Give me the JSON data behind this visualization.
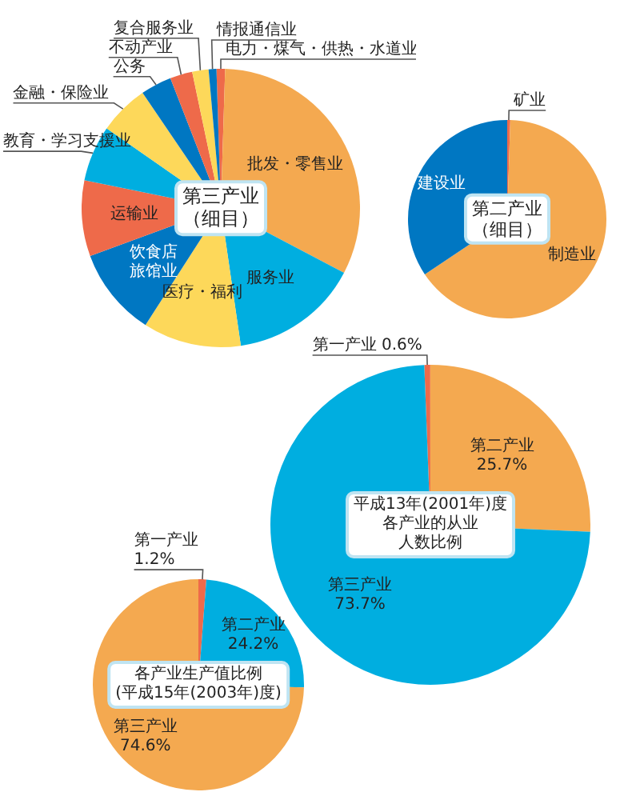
{
  "chart_data": [
    {
      "type": "pie",
      "title": "第三产业",
      "subtitle": "（细目）",
      "categories": [
        "电力・煤气・供热・水道业",
        "批发・零售业",
        "服务业",
        "医疗・福利",
        "饮食店旅馆业",
        "运输业",
        "教育・学习支援业",
        "金融・保险业",
        "公务",
        "不动产业",
        "复合服务业",
        "情报通信业"
      ],
      "values": [
        1.0,
        32.2,
        15.0,
        11.4,
        10.3,
        8.8,
        6.5,
        5.8,
        3.6,
        2.6,
        1.9,
        0.9
      ],
      "colors": [
        "#ee6a4a",
        "#f4a950",
        "#00aee0",
        "#fdd85a",
        "#0077c2",
        "#ee6a4a",
        "#00aee0",
        "#fdd85a",
        "#0077c2",
        "#ee6a4a",
        "#fdd85a",
        "#0077c2"
      ]
    },
    {
      "type": "pie",
      "title": "第二产业",
      "subtitle": "（细目）",
      "categories": [
        "矿业",
        "制造业",
        "建设业"
      ],
      "values": [
        0.5,
        65.1,
        34.4
      ],
      "colors": [
        "#ee6a4a",
        "#f4a950",
        "#0077c2"
      ]
    },
    {
      "type": "pie",
      "title": "平成13年(2001年)度",
      "subtitle": "各产业的从业人数比例",
      "categories": [
        "第一产业",
        "第二产业",
        "第三产业"
      ],
      "values": [
        0.6,
        25.7,
        73.7
      ],
      "value_labels": [
        "0.6%",
        "25.7%",
        "73.7%"
      ],
      "colors": [
        "#ee6a4a",
        "#f4a950",
        "#00aee0"
      ]
    },
    {
      "type": "pie",
      "title": "各产业生产值比例",
      "subtitle": "(平成15年(2003年)度)",
      "categories": [
        "第一产业",
        "第二产业",
        "第三产业"
      ],
      "values": [
        1.2,
        24.2,
        74.6
      ],
      "value_labels": [
        "1.2%",
        "24.2%",
        "74.6%"
      ],
      "colors": [
        "#ee6a4a",
        "#00aee0",
        "#f4a950"
      ]
    }
  ]
}
